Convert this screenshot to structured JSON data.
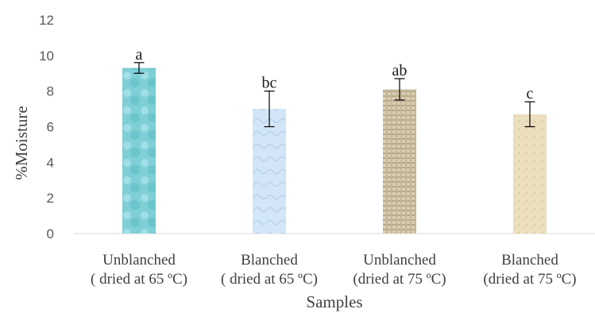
{
  "chart_data": {
    "type": "bar",
    "categories": [
      [
        "Unblanched",
        "( dried at 65 ºC)"
      ],
      [
        "Blanched",
        "( dried at 65 ºC)"
      ],
      [
        "Unblanched",
        "(dried at 75 ºC)"
      ],
      [
        "Blanched",
        "(dried at 75 ºC)"
      ]
    ],
    "values": [
      9.3,
      7.0,
      8.1,
      6.7
    ],
    "error_bars": [
      {
        "low": 9.0,
        "high": 9.6
      },
      {
        "low": 6.0,
        "high": 8.0
      },
      {
        "low": 7.5,
        "high": 8.7
      },
      {
        "low": 6.0,
        "high": 7.4
      }
    ],
    "significance_labels": [
      "a",
      "bc",
      "ab",
      "c"
    ],
    "xlabel": "Samples",
    "ylabel": "%Moisture",
    "ylim": [
      0,
      12
    ],
    "yticks": [
      0,
      2,
      4,
      6,
      8,
      10,
      12
    ],
    "grid": false,
    "legend": "none",
    "colors": {
      "bars": [
        "#7fcfd6",
        "#cfe3f5",
        "#cdbfa4",
        "#eadcb9"
      ],
      "axis": "#d9d9d9",
      "error_bar": "#000000"
    }
  }
}
